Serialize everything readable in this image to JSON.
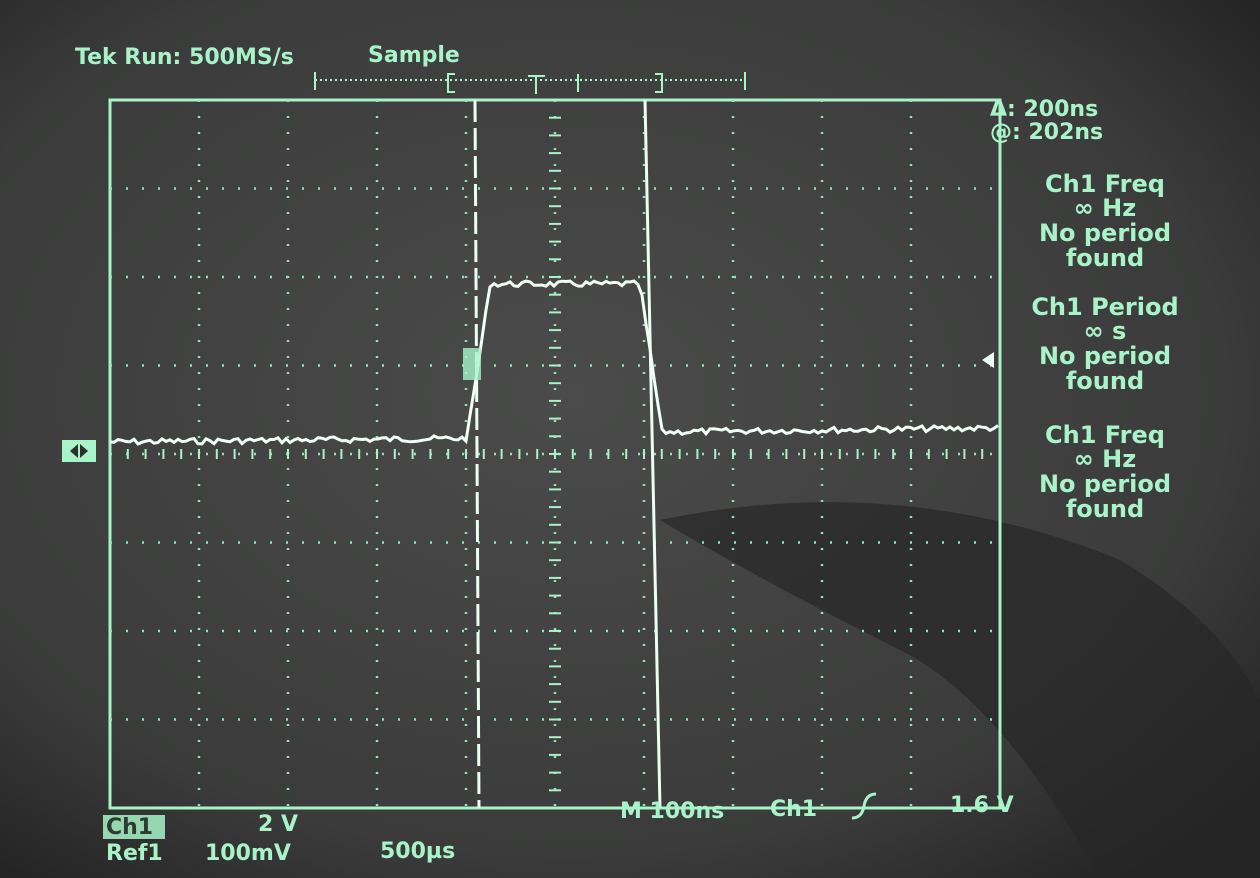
{
  "header": {
    "status": "Tek Run: 500MS/s",
    "mode": "Sample"
  },
  "cursor": {
    "delta": "Δ: 200ns",
    "at": "@: 202ns"
  },
  "measurements": [
    {
      "title": "Ch1 Freq",
      "value": "∞ Hz",
      "note": [
        "No period",
        "found"
      ]
    },
    {
      "title": "Ch1 Period",
      "value": "∞ s",
      "note": [
        "No period",
        "found"
      ]
    },
    {
      "title": "Ch1 Freq",
      "value": "∞ Hz",
      "note": [
        "No period",
        "found"
      ]
    }
  ],
  "footer": {
    "ch1": "Ch1",
    "ch1_scale": "2 V",
    "ref1": "Ref1",
    "ref1_scale": "100mV",
    "ref1_time": "500µs",
    "timebase": "M 100ns",
    "trigger_source": "Ch1",
    "trigger_level": "1.6 V"
  }
}
